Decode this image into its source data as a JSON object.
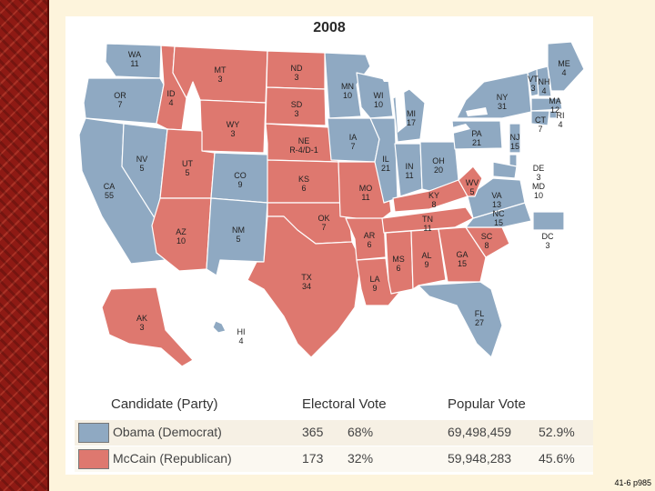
{
  "title": "2008",
  "colors": {
    "democrat": "#8fa9c2",
    "republican": "#de786f",
    "water": "#ffffff",
    "border": "#ffffff"
  },
  "states": [
    {
      "abbr": "WA",
      "ev": "11",
      "party": "D"
    },
    {
      "abbr": "OR",
      "ev": "7",
      "party": "D"
    },
    {
      "abbr": "CA",
      "ev": "55",
      "party": "D"
    },
    {
      "abbr": "NV",
      "ev": "5",
      "party": "D"
    },
    {
      "abbr": "ID",
      "ev": "4",
      "party": "R"
    },
    {
      "abbr": "MT",
      "ev": "3",
      "party": "R"
    },
    {
      "abbr": "WY",
      "ev": "3",
      "party": "R"
    },
    {
      "abbr": "UT",
      "ev": "5",
      "party": "R"
    },
    {
      "abbr": "AZ",
      "ev": "10",
      "party": "R"
    },
    {
      "abbr": "CO",
      "ev": "9",
      "party": "D"
    },
    {
      "abbr": "NM",
      "ev": "5",
      "party": "D"
    },
    {
      "abbr": "ND",
      "ev": "3",
      "party": "R"
    },
    {
      "abbr": "SD",
      "ev": "3",
      "party": "R"
    },
    {
      "abbr": "NE",
      "ev": "R-4/D-1",
      "party": "R"
    },
    {
      "abbr": "KS",
      "ev": "6",
      "party": "R"
    },
    {
      "abbr": "OK",
      "ev": "7",
      "party": "R"
    },
    {
      "abbr": "TX",
      "ev": "34",
      "party": "R"
    },
    {
      "abbr": "MN",
      "ev": "10",
      "party": "D"
    },
    {
      "abbr": "IA",
      "ev": "7",
      "party": "D"
    },
    {
      "abbr": "MO",
      "ev": "11",
      "party": "R"
    },
    {
      "abbr": "AR",
      "ev": "6",
      "party": "R"
    },
    {
      "abbr": "LA",
      "ev": "9",
      "party": "R"
    },
    {
      "abbr": "WI",
      "ev": "10",
      "party": "D"
    },
    {
      "abbr": "IL",
      "ev": "21",
      "party": "D"
    },
    {
      "abbr": "MI",
      "ev": "17",
      "party": "D"
    },
    {
      "abbr": "IN",
      "ev": "11",
      "party": "D"
    },
    {
      "abbr": "OH",
      "ev": "20",
      "party": "D"
    },
    {
      "abbr": "KY",
      "ev": "8",
      "party": "R"
    },
    {
      "abbr": "TN",
      "ev": "11",
      "party": "R"
    },
    {
      "abbr": "MS",
      "ev": "6",
      "party": "R"
    },
    {
      "abbr": "AL",
      "ev": "9",
      "party": "R"
    },
    {
      "abbr": "GA",
      "ev": "15",
      "party": "R"
    },
    {
      "abbr": "FL",
      "ev": "27",
      "party": "D"
    },
    {
      "abbr": "SC",
      "ev": "8",
      "party": "R"
    },
    {
      "abbr": "NC",
      "ev": "15",
      "party": "D"
    },
    {
      "abbr": "VA",
      "ev": "13",
      "party": "D"
    },
    {
      "abbr": "WV",
      "ev": "5",
      "party": "R"
    },
    {
      "abbr": "PA",
      "ev": "21",
      "party": "D"
    },
    {
      "abbr": "NY",
      "ev": "31",
      "party": "D"
    },
    {
      "abbr": "VT",
      "ev": "3",
      "party": "D"
    },
    {
      "abbr": "NH",
      "ev": "4",
      "party": "D"
    },
    {
      "abbr": "ME",
      "ev": "4",
      "party": "D"
    },
    {
      "abbr": "MA",
      "ev": "12",
      "party": "D"
    },
    {
      "abbr": "RI",
      "ev": "4",
      "party": "D"
    },
    {
      "abbr": "CT",
      "ev": "7",
      "party": "D"
    },
    {
      "abbr": "NJ",
      "ev": "15",
      "party": "D"
    },
    {
      "abbr": "DE",
      "ev": "3",
      "party": "D"
    },
    {
      "abbr": "MD",
      "ev": "10",
      "party": "D"
    },
    {
      "abbr": "DC",
      "ev": "3",
      "party": "D"
    },
    {
      "abbr": "AK",
      "ev": "3",
      "party": "R"
    },
    {
      "abbr": "HI",
      "ev": "4",
      "party": "D"
    }
  ],
  "legend": {
    "headers": {
      "candidate": "Candidate (Party)",
      "electoral": "Electoral Vote",
      "popular": "Popular Vote"
    },
    "rows": [
      {
        "candidate": "Obama (Democrat)",
        "ev": "365",
        "ev_pct": "68%",
        "pv": "69,498,459",
        "pv_pct": "52.9%",
        "color": "#8fa9c2"
      },
      {
        "candidate": "McCain (Republican)",
        "ev": "173",
        "ev_pct": "32%",
        "pv": "59,948,283",
        "pv_pct": "45.6%",
        "color": "#de786f"
      }
    ]
  },
  "footer": "41-6 p985"
}
